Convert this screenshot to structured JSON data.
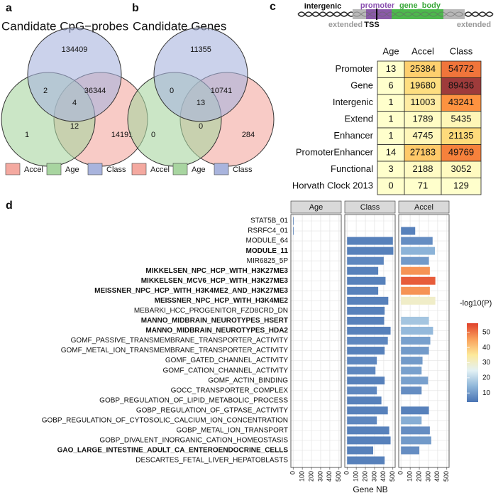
{
  "panel_labels": [
    "a",
    "b",
    "c",
    "d"
  ],
  "venn": [
    {
      "title": "Candidate CpG−probes",
      "sets": [
        {
          "name": "Accel",
          "color": "#f4a9a0"
        },
        {
          "name": "Age",
          "color": "#a8d5a0"
        },
        {
          "name": "Class",
          "color": "#a9b4dd"
        }
      ],
      "counts": {
        "class_only": 134409,
        "age_class": 2,
        "accel_class": 36344,
        "all": 4,
        "age_only": 1,
        "accel_only": 14191,
        "age_accel": 12
      }
    },
    {
      "title": "Candidate Genes",
      "sets": [
        {
          "name": "Accel",
          "color": "#f4a9a0"
        },
        {
          "name": "Age",
          "color": "#a8d5a0"
        },
        {
          "name": "Class",
          "color": "#a9b4dd"
        }
      ],
      "counts": {
        "class_only": 11355,
        "age_class": 0,
        "accel_class": 10741,
        "all": 13,
        "age_only": 0,
        "accel_only": 284,
        "age_accel": 0
      }
    }
  ],
  "gene_diagram": {
    "intergenic": "intergenic",
    "promoter": "promoter",
    "gene_body": "gene_body",
    "extended_left": "extended",
    "tss": "TSS",
    "extended_right": "extended"
  },
  "table": {
    "columns": [
      "Age",
      "Accel",
      "Class"
    ],
    "rows": [
      {
        "label": "Promoter",
        "values": [
          13,
          25384,
          54772
        ]
      },
      {
        "label": "Gene",
        "values": [
          6,
          19680,
          89436
        ]
      },
      {
        "label": "Intergenic",
        "values": [
          1,
          11003,
          43241
        ]
      },
      {
        "label": "Extend",
        "values": [
          1,
          1789,
          5435
        ]
      },
      {
        "label": "Enhancer",
        "values": [
          1,
          4745,
          21135
        ]
      },
      {
        "label": "PromoterEnhancer",
        "values": [
          14,
          27183,
          49769
        ]
      },
      {
        "label": "Functional",
        "values": [
          3,
          2188,
          3052
        ]
      },
      {
        "label": "Horvath Clock 2013",
        "values": [
          0,
          71,
          129
        ]
      }
    ],
    "colors": [
      "#ffffcc",
      "#fed976",
      "#fd8d3c",
      "#e0573a",
      "#9e3b3b"
    ]
  },
  "chart_data": {
    "type": "faceted_barh",
    "categories": [
      "STAT5B_01",
      "RSRFC4_01",
      "MODULE_64",
      "MODULE_11",
      "MIR6825_5P",
      "MIKKELSEN_NPC_HCP_WITH_H3K27ME3",
      "MIKKELSEN_MCV6_HCP_WITH_H3K27ME3",
      "MEISSNER_NPC_HCP_WITH_H3K4ME2_AND_H3K27ME3",
      "MEISSNER_NPC_HCP_WITH_H3K4ME2",
      "MEBARKI_HCC_PROGENITOR_FZD8CRD_DN",
      "MANNO_MIDBRAIN_NEUROTYPES_HSERT",
      "MANNO_MIDBRAIN_NEUROTYPES_HDA2",
      "GOMF_PASSIVE_TRANSMEMBRANE_TRANSPORTER_ACTIVITY",
      "GOMF_METAL_ION_TRANSMEMBRANE_TRANSPORTER_ACTIVITY",
      "GOMF_GATED_CHANNEL_ACTIVITY",
      "GOMF_CATION_CHANNEL_ACTIVITY",
      "GOMF_ACTIN_BINDING",
      "GOCC_TRANSPORTER_COMPLEX",
      "GOBP_REGULATION_OF_LIPID_METABOLIC_PROCESS",
      "GOBP_REGULATION_OF_GTPASE_ACTIVITY",
      "GOBP_REGULATION_OF_CYTOSOLIC_CALCIUM_ION_CONCENTRATION",
      "GOBP_METAL_ION_TRANSPORT",
      "GOBP_DIVALENT_INORGANIC_CATION_HOMEOSTASIS",
      "GAO_LARGE_INTESTINE_ADULT_CA_ENTEROENDOCRINE_CELLS",
      "DESCARTES_FETAL_LIVER_HEPATOBLASTS"
    ],
    "bold": [
      false,
      false,
      false,
      true,
      false,
      true,
      true,
      true,
      true,
      false,
      true,
      true,
      false,
      false,
      false,
      false,
      false,
      false,
      false,
      false,
      false,
      false,
      false,
      true,
      false
    ],
    "series": [
      {
        "name": "Age",
        "values": [
          2,
          2,
          null,
          null,
          null,
          null,
          null,
          null,
          null,
          null,
          null,
          null,
          null,
          null,
          null,
          null,
          null,
          null,
          null,
          null,
          null,
          null,
          null,
          null,
          null
        ],
        "pvals": [
          6,
          6,
          null,
          null,
          null,
          null,
          null,
          null,
          null,
          null,
          null,
          null,
          null,
          null,
          null,
          null,
          null,
          null,
          null,
          null,
          null,
          null,
          null,
          null,
          null
        ]
      },
      {
        "name": "Class",
        "values": [
          null,
          null,
          500,
          505,
          400,
          340,
          420,
          340,
          450,
          410,
          405,
          475,
          445,
          410,
          325,
          310,
          410,
          325,
          375,
          445,
          325,
          460,
          475,
          285,
          410
        ],
        "pvals": [
          null,
          null,
          6,
          6,
          7,
          6,
          6,
          6,
          6,
          6,
          6,
          6,
          7,
          6,
          7,
          7,
          6,
          7,
          6,
          6,
          7,
          6,
          6,
          6,
          6
        ]
      },
      {
        "name": "Accel",
        "values": [
          null,
          155,
          345,
          370,
          305,
          315,
          375,
          315,
          375,
          null,
          305,
          350,
          320,
          305,
          235,
          225,
          295,
          225,
          null,
          305,
          225,
          315,
          330,
          200,
          null
        ],
        "pvals": [
          null,
          6,
          8,
          14,
          10,
          47,
          53,
          47,
          30,
          null,
          17,
          15,
          11,
          10,
          10,
          11,
          11,
          8,
          null,
          6,
          13,
          8,
          10,
          8,
          null
        ]
      }
    ],
    "xlim": [
      -25,
      525
    ],
    "xticks": [
      0,
      100,
      200,
      300,
      400,
      500
    ],
    "xlabel": "Gene NB",
    "grid": true,
    "colorbar": {
      "title": "-log10(P)",
      "lim": [
        4,
        56
      ],
      "ticks": [
        10,
        20,
        30,
        40,
        50
      ],
      "colors": [
        "#4a74b4",
        "#8fb6d9",
        "#e3f1f5",
        "#fde99a",
        "#f9a05b",
        "#e0412c"
      ]
    }
  }
}
